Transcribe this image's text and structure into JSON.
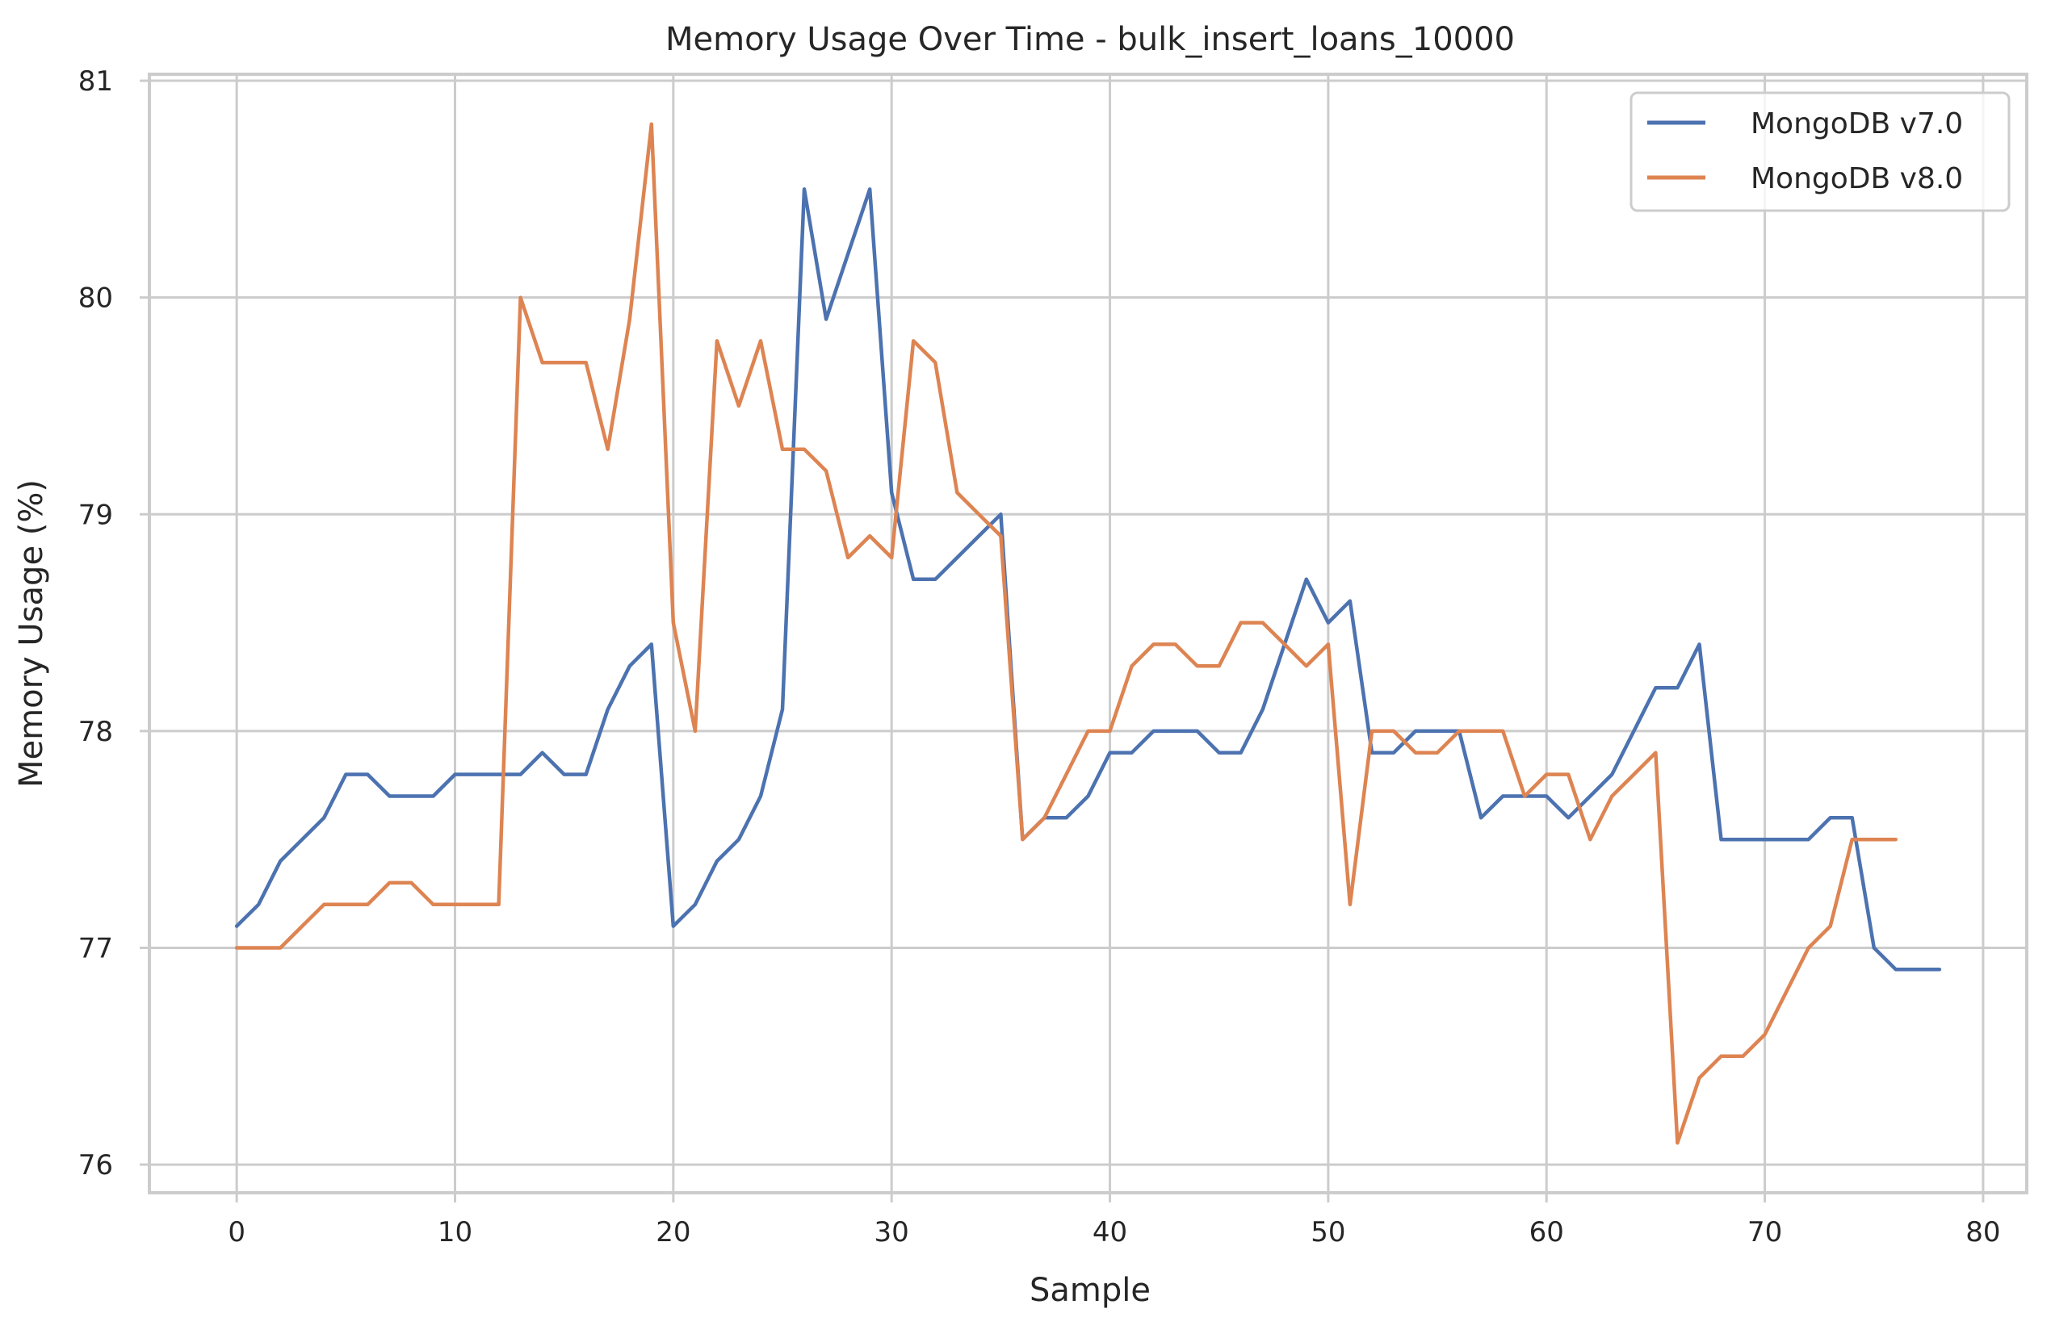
{
  "chart_data": {
    "type": "line",
    "title": "Memory Usage Over Time - bulk_insert_loans_10000",
    "xlabel": "Sample",
    "ylabel": "Memory Usage (%)",
    "xlim": [
      -4,
      82
    ],
    "ylim": [
      75.87,
      81.03
    ],
    "xticks": [
      0,
      10,
      20,
      30,
      40,
      50,
      60,
      70,
      80
    ],
    "yticks": [
      76,
      77,
      78,
      79,
      80,
      81
    ],
    "grid": true,
    "legend_position": "top-right",
    "series": [
      {
        "name": "MongoDB v7.0",
        "color": "#4c72b0",
        "values": [
          77.1,
          77.2,
          77.4,
          77.5,
          77.6,
          77.8,
          77.8,
          77.7,
          77.7,
          77.7,
          77.8,
          77.8,
          77.8,
          77.8,
          77.9,
          77.8,
          77.8,
          78.1,
          78.3,
          78.4,
          77.1,
          77.2,
          77.4,
          77.5,
          77.7,
          78.1,
          80.5,
          79.9,
          80.2,
          80.5,
          79.1,
          78.7,
          78.7,
          78.8,
          78.9,
          79.0,
          77.5,
          77.6,
          77.6,
          77.7,
          77.9,
          77.9,
          78.0,
          78.0,
          78.0,
          77.9,
          77.9,
          78.1,
          78.4,
          78.7,
          78.5,
          78.6,
          77.9,
          77.9,
          78.0,
          78.0,
          78.0,
          77.6,
          77.7,
          77.7,
          77.7,
          77.6,
          77.7,
          77.8,
          78.0,
          78.2,
          78.2,
          78.4,
          77.5,
          77.5,
          77.5,
          77.5,
          77.5,
          77.6,
          77.6,
          77.0,
          76.9,
          76.9,
          76.9
        ]
      },
      {
        "name": "MongoDB v8.0",
        "color": "#dd8452",
        "values": [
          77.0,
          77.0,
          77.0,
          77.1,
          77.2,
          77.2,
          77.2,
          77.3,
          77.3,
          77.2,
          77.2,
          77.2,
          77.2,
          80.0,
          79.7,
          79.7,
          79.7,
          79.3,
          79.9,
          80.8,
          78.5,
          78.0,
          79.8,
          79.5,
          79.8,
          79.3,
          79.3,
          79.2,
          78.8,
          78.9,
          78.8,
          79.8,
          79.7,
          79.1,
          79.0,
          78.9,
          77.5,
          77.6,
          77.8,
          78.0,
          78.0,
          78.3,
          78.4,
          78.4,
          78.3,
          78.3,
          78.5,
          78.5,
          78.4,
          78.3,
          78.4,
          77.2,
          78.0,
          78.0,
          77.9,
          77.9,
          78.0,
          78.0,
          78.0,
          77.7,
          77.8,
          77.8,
          77.5,
          77.7,
          77.8,
          77.9,
          76.1,
          76.4,
          76.5,
          76.5,
          76.6,
          76.8,
          77.0,
          77.1,
          77.5,
          77.5,
          77.5
        ]
      }
    ]
  }
}
